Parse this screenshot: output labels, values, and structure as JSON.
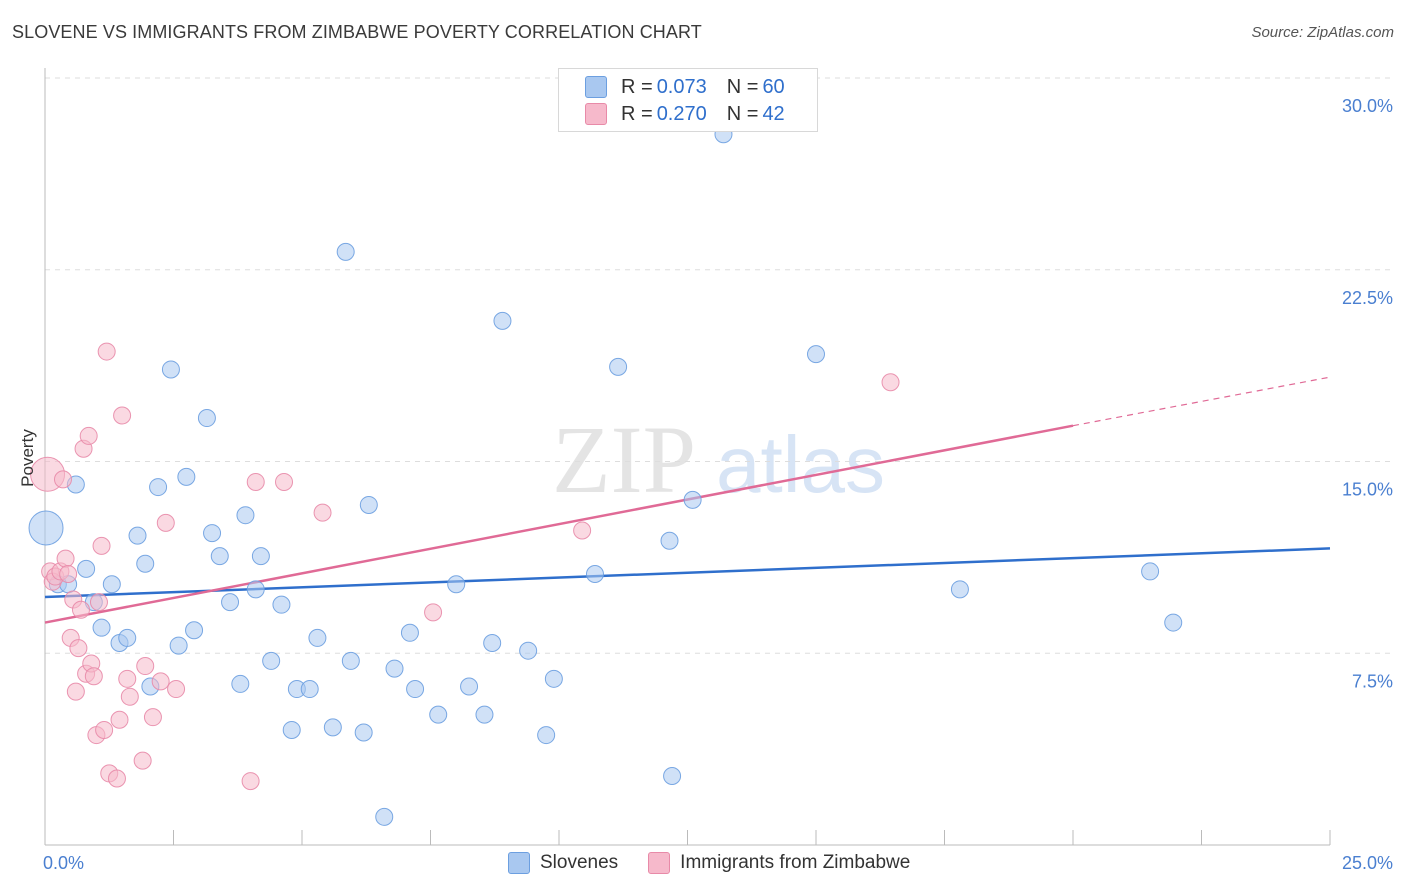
{
  "title": "SLOVENE VS IMMIGRANTS FROM ZIMBABWE POVERTY CORRELATION CHART",
  "source": "Source: ZipAtlas.com",
  "watermark": {
    "zip": "ZIP",
    "atlas": "atlas"
  },
  "legend": {
    "series1": {
      "r_label": "R = ",
      "r_value": "0.073",
      "n_label": "N = ",
      "n_value": "60"
    },
    "series2": {
      "r_label": "R = ",
      "r_value": "0.270",
      "n_label": "N = ",
      "n_value": "42"
    }
  },
  "colors": {
    "blue_fill": "#a9c8f0",
    "blue_stroke": "#6c9fe0",
    "blue_line": "#2f6fcc",
    "pink_fill": "#f6b9cb",
    "pink_stroke": "#e88aa8",
    "pink_line": "#e06a96",
    "grid": "#dddddd",
    "tick_text": "#4a7fd0"
  },
  "chart_data": {
    "type": "scatter",
    "title": "SLOVENE VS IMMIGRANTS FROM ZIMBABWE POVERTY CORRELATION CHART",
    "xlabel": "",
    "ylabel": "Poverty",
    "xlim": [
      0,
      25
    ],
    "ylim": [
      0,
      30
    ],
    "x_tick_labels": [
      {
        "value": 0,
        "label": "0.0%"
      },
      {
        "value": 25,
        "label": "25.0%"
      }
    ],
    "y_tick_labels": [
      {
        "value": 7.5,
        "label": "7.5%"
      },
      {
        "value": 15,
        "label": "15.0%"
      },
      {
        "value": 22.5,
        "label": "22.5%"
      },
      {
        "value": 30,
        "label": "30.0%"
      }
    ],
    "series": [
      {
        "name": "Slovenes",
        "color": "#a9c8f0",
        "trend": {
          "x": [
            0,
            25
          ],
          "y": [
            9.7,
            11.6
          ]
        },
        "points": [
          {
            "x": 0.02,
            "y": 12.4,
            "big": true
          },
          {
            "x": 0.25,
            "y": 10.2
          },
          {
            "x": 0.45,
            "y": 10.2
          },
          {
            "x": 0.6,
            "y": 14.1
          },
          {
            "x": 0.8,
            "y": 10.8
          },
          {
            "x": 0.95,
            "y": 9.5
          },
          {
            "x": 1.1,
            "y": 8.5
          },
          {
            "x": 1.3,
            "y": 10.2
          },
          {
            "x": 1.45,
            "y": 7.9
          },
          {
            "x": 1.6,
            "y": 8.1
          },
          {
            "x": 1.8,
            "y": 12.1
          },
          {
            "x": 1.95,
            "y": 11.0
          },
          {
            "x": 2.05,
            "y": 6.2
          },
          {
            "x": 2.2,
            "y": 14.0
          },
          {
            "x": 2.45,
            "y": 18.6
          },
          {
            "x": 2.6,
            "y": 7.8
          },
          {
            "x": 2.75,
            "y": 14.4
          },
          {
            "x": 2.9,
            "y": 8.4
          },
          {
            "x": 3.15,
            "y": 16.7
          },
          {
            "x": 3.25,
            "y": 12.2
          },
          {
            "x": 3.4,
            "y": 11.3
          },
          {
            "x": 3.6,
            "y": 9.5
          },
          {
            "x": 3.8,
            "y": 6.3
          },
          {
            "x": 3.9,
            "y": 12.9
          },
          {
            "x": 4.1,
            "y": 10.0
          },
          {
            "x": 4.2,
            "y": 11.3
          },
          {
            "x": 4.4,
            "y": 7.2
          },
          {
            "x": 4.6,
            "y": 9.4
          },
          {
            "x": 4.8,
            "y": 4.5
          },
          {
            "x": 4.9,
            "y": 6.1
          },
          {
            "x": 5.15,
            "y": 6.1
          },
          {
            "x": 5.3,
            "y": 8.1
          },
          {
            "x": 5.6,
            "y": 4.6
          },
          {
            "x": 5.85,
            "y": 23.2
          },
          {
            "x": 5.95,
            "y": 7.2
          },
          {
            "x": 6.2,
            "y": 4.4
          },
          {
            "x": 6.3,
            "y": 13.3
          },
          {
            "x": 6.6,
            "y": 1.1
          },
          {
            "x": 6.8,
            "y": 6.9
          },
          {
            "x": 7.1,
            "y": 8.3
          },
          {
            "x": 7.2,
            "y": 6.1
          },
          {
            "x": 7.65,
            "y": 5.1
          },
          {
            "x": 8.0,
            "y": 10.2
          },
          {
            "x": 8.25,
            "y": 6.2
          },
          {
            "x": 8.55,
            "y": 5.1
          },
          {
            "x": 8.7,
            "y": 7.9
          },
          {
            "x": 8.9,
            "y": 20.5
          },
          {
            "x": 9.4,
            "y": 7.6
          },
          {
            "x": 9.75,
            "y": 4.3
          },
          {
            "x": 9.9,
            "y": 6.5
          },
          {
            "x": 10.7,
            "y": 10.6
          },
          {
            "x": 11.15,
            "y": 18.7
          },
          {
            "x": 12.15,
            "y": 11.9
          },
          {
            "x": 12.2,
            "y": 2.7
          },
          {
            "x": 12.6,
            "y": 13.5
          },
          {
            "x": 13.2,
            "y": 27.8
          },
          {
            "x": 15.0,
            "y": 19.2
          },
          {
            "x": 17.8,
            "y": 10.0
          },
          {
            "x": 21.5,
            "y": 10.7
          },
          {
            "x": 21.95,
            "y": 8.7
          }
        ]
      },
      {
        "name": "Immigrants from Zimbabwe",
        "color": "#f6b9cb",
        "trend": {
          "x": [
            0,
            20
          ],
          "y": [
            8.7,
            16.4
          ],
          "dashed_extension": {
            "x": [
              20,
              25
            ],
            "y": [
              16.4,
              18.3
            ]
          }
        },
        "points": [
          {
            "x": 0.05,
            "y": 14.5,
            "big": true
          },
          {
            "x": 0.1,
            "y": 10.7
          },
          {
            "x": 0.15,
            "y": 10.3
          },
          {
            "x": 0.2,
            "y": 10.5
          },
          {
            "x": 0.3,
            "y": 10.7
          },
          {
            "x": 0.35,
            "y": 14.3
          },
          {
            "x": 0.4,
            "y": 11.2
          },
          {
            "x": 0.45,
            "y": 10.6
          },
          {
            "x": 0.5,
            "y": 8.1
          },
          {
            "x": 0.55,
            "y": 9.6
          },
          {
            "x": 0.6,
            "y": 6.0
          },
          {
            "x": 0.65,
            "y": 7.7
          },
          {
            "x": 0.7,
            "y": 9.2
          },
          {
            "x": 0.75,
            "y": 15.5
          },
          {
            "x": 0.8,
            "y": 6.7
          },
          {
            "x": 0.85,
            "y": 16.0
          },
          {
            "x": 0.9,
            "y": 7.1
          },
          {
            "x": 0.95,
            "y": 6.6
          },
          {
            "x": 1.0,
            "y": 4.3
          },
          {
            "x": 1.05,
            "y": 9.5
          },
          {
            "x": 1.1,
            "y": 11.7
          },
          {
            "x": 1.15,
            "y": 4.5
          },
          {
            "x": 1.2,
            "y": 19.3
          },
          {
            "x": 1.25,
            "y": 2.8
          },
          {
            "x": 1.4,
            "y": 2.6
          },
          {
            "x": 1.45,
            "y": 4.9
          },
          {
            "x": 1.5,
            "y": 16.8
          },
          {
            "x": 1.6,
            "y": 6.5
          },
          {
            "x": 1.65,
            "y": 5.8
          },
          {
            "x": 1.9,
            "y": 3.3
          },
          {
            "x": 1.95,
            "y": 7.0
          },
          {
            "x": 2.1,
            "y": 5.0
          },
          {
            "x": 2.25,
            "y": 6.4
          },
          {
            "x": 2.35,
            "y": 12.6
          },
          {
            "x": 2.55,
            "y": 6.1
          },
          {
            "x": 4.0,
            "y": 2.5
          },
          {
            "x": 4.1,
            "y": 14.2
          },
          {
            "x": 4.65,
            "y": 14.2
          },
          {
            "x": 5.4,
            "y": 13.0
          },
          {
            "x": 7.55,
            "y": 9.1
          },
          {
            "x": 10.45,
            "y": 12.3
          },
          {
            "x": 16.45,
            "y": 18.1
          }
        ]
      }
    ]
  }
}
